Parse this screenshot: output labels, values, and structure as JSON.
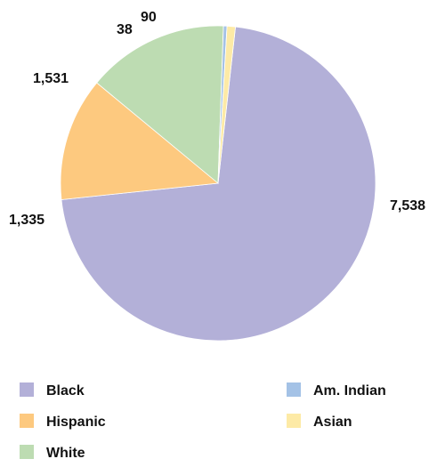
{
  "chart_data": {
    "type": "pie",
    "title": "",
    "slices": [
      {
        "name": "Black",
        "value": 7538,
        "label": "7,538",
        "color": "#b3b0d8"
      },
      {
        "name": "Hispanic",
        "value": 1335,
        "label": "1,335",
        "color": "#fdc97f"
      },
      {
        "name": "White",
        "value": 1531,
        "label": "1,531",
        "color": "#bddcb2"
      },
      {
        "name": "Am. Indian",
        "value": 38,
        "label": "38",
        "color": "#a4c2e6"
      },
      {
        "name": "Asian",
        "value": 90,
        "label": "90",
        "color": "#fdeaa6"
      }
    ],
    "legend": {
      "placement": "bottom",
      "items": [
        {
          "name": "Black",
          "color": "#b3b0d8"
        },
        {
          "name": "Hispanic",
          "color": "#fdc97f"
        },
        {
          "name": "White",
          "color": "#bddcb2"
        },
        {
          "name": "Am. Indian",
          "color": "#a4c2e6"
        },
        {
          "name": "Asian",
          "color": "#fdeaa6"
        }
      ]
    }
  }
}
